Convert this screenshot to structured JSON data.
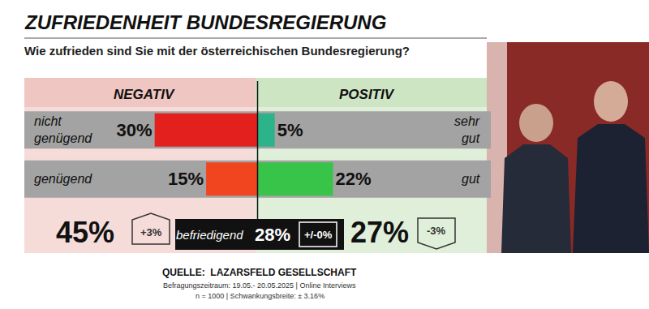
{
  "chart_data": {
    "type": "bar",
    "orientation": "horizontal",
    "title": "ZUFRIEDENHEIT BUNDESREGIERUNG",
    "subtitle": "Wie zufrieden sind Sie mit der österreichischen Bundesregierung?",
    "xlim": [
      0,
      68
    ],
    "tick_labels": false,
    "grid": false,
    "data_labels": true,
    "series": [
      {
        "name": "NEGATIV",
        "labels": [
          "nicht\ngenügend",
          "genügend"
        ],
        "values": [
          30,
          15
        ],
        "value_labels": [
          "30%",
          "15%"
        ],
        "colors": [
          "#e4201e",
          "#f0451f"
        ]
      },
      {
        "name": "POSITIV",
        "labels": [
          "sehr\ngut",
          "gut"
        ],
        "values": [
          5,
          22
        ],
        "value_labels": [
          "5%",
          "22%"
        ],
        "colors": [
          "#2db389",
          "#38c349"
        ]
      }
    ],
    "totals": {
      "negative": {
        "value": 45,
        "value_label": "45%",
        "change": {
          "value": 3,
          "label": "+3%"
        }
      },
      "neutral": {
        "label": "befriedigend",
        "value": 28,
        "value_label": "28%",
        "change": {
          "value": 0,
          "label": "+/-0%"
        }
      },
      "positive": {
        "value": 27,
        "value_label": "27%",
        "change": {
          "value": -3,
          "label": "-3%"
        }
      }
    },
    "source": [
      "QUELLE:  LAZARSFELD GESELLSCHAFT",
      "Befragungszeitraum: 19.05.- 20.05.2025 | Online Interviews",
      "n = 1000 | Schwankungsbreite: ± 3.16%"
    ]
  }
}
